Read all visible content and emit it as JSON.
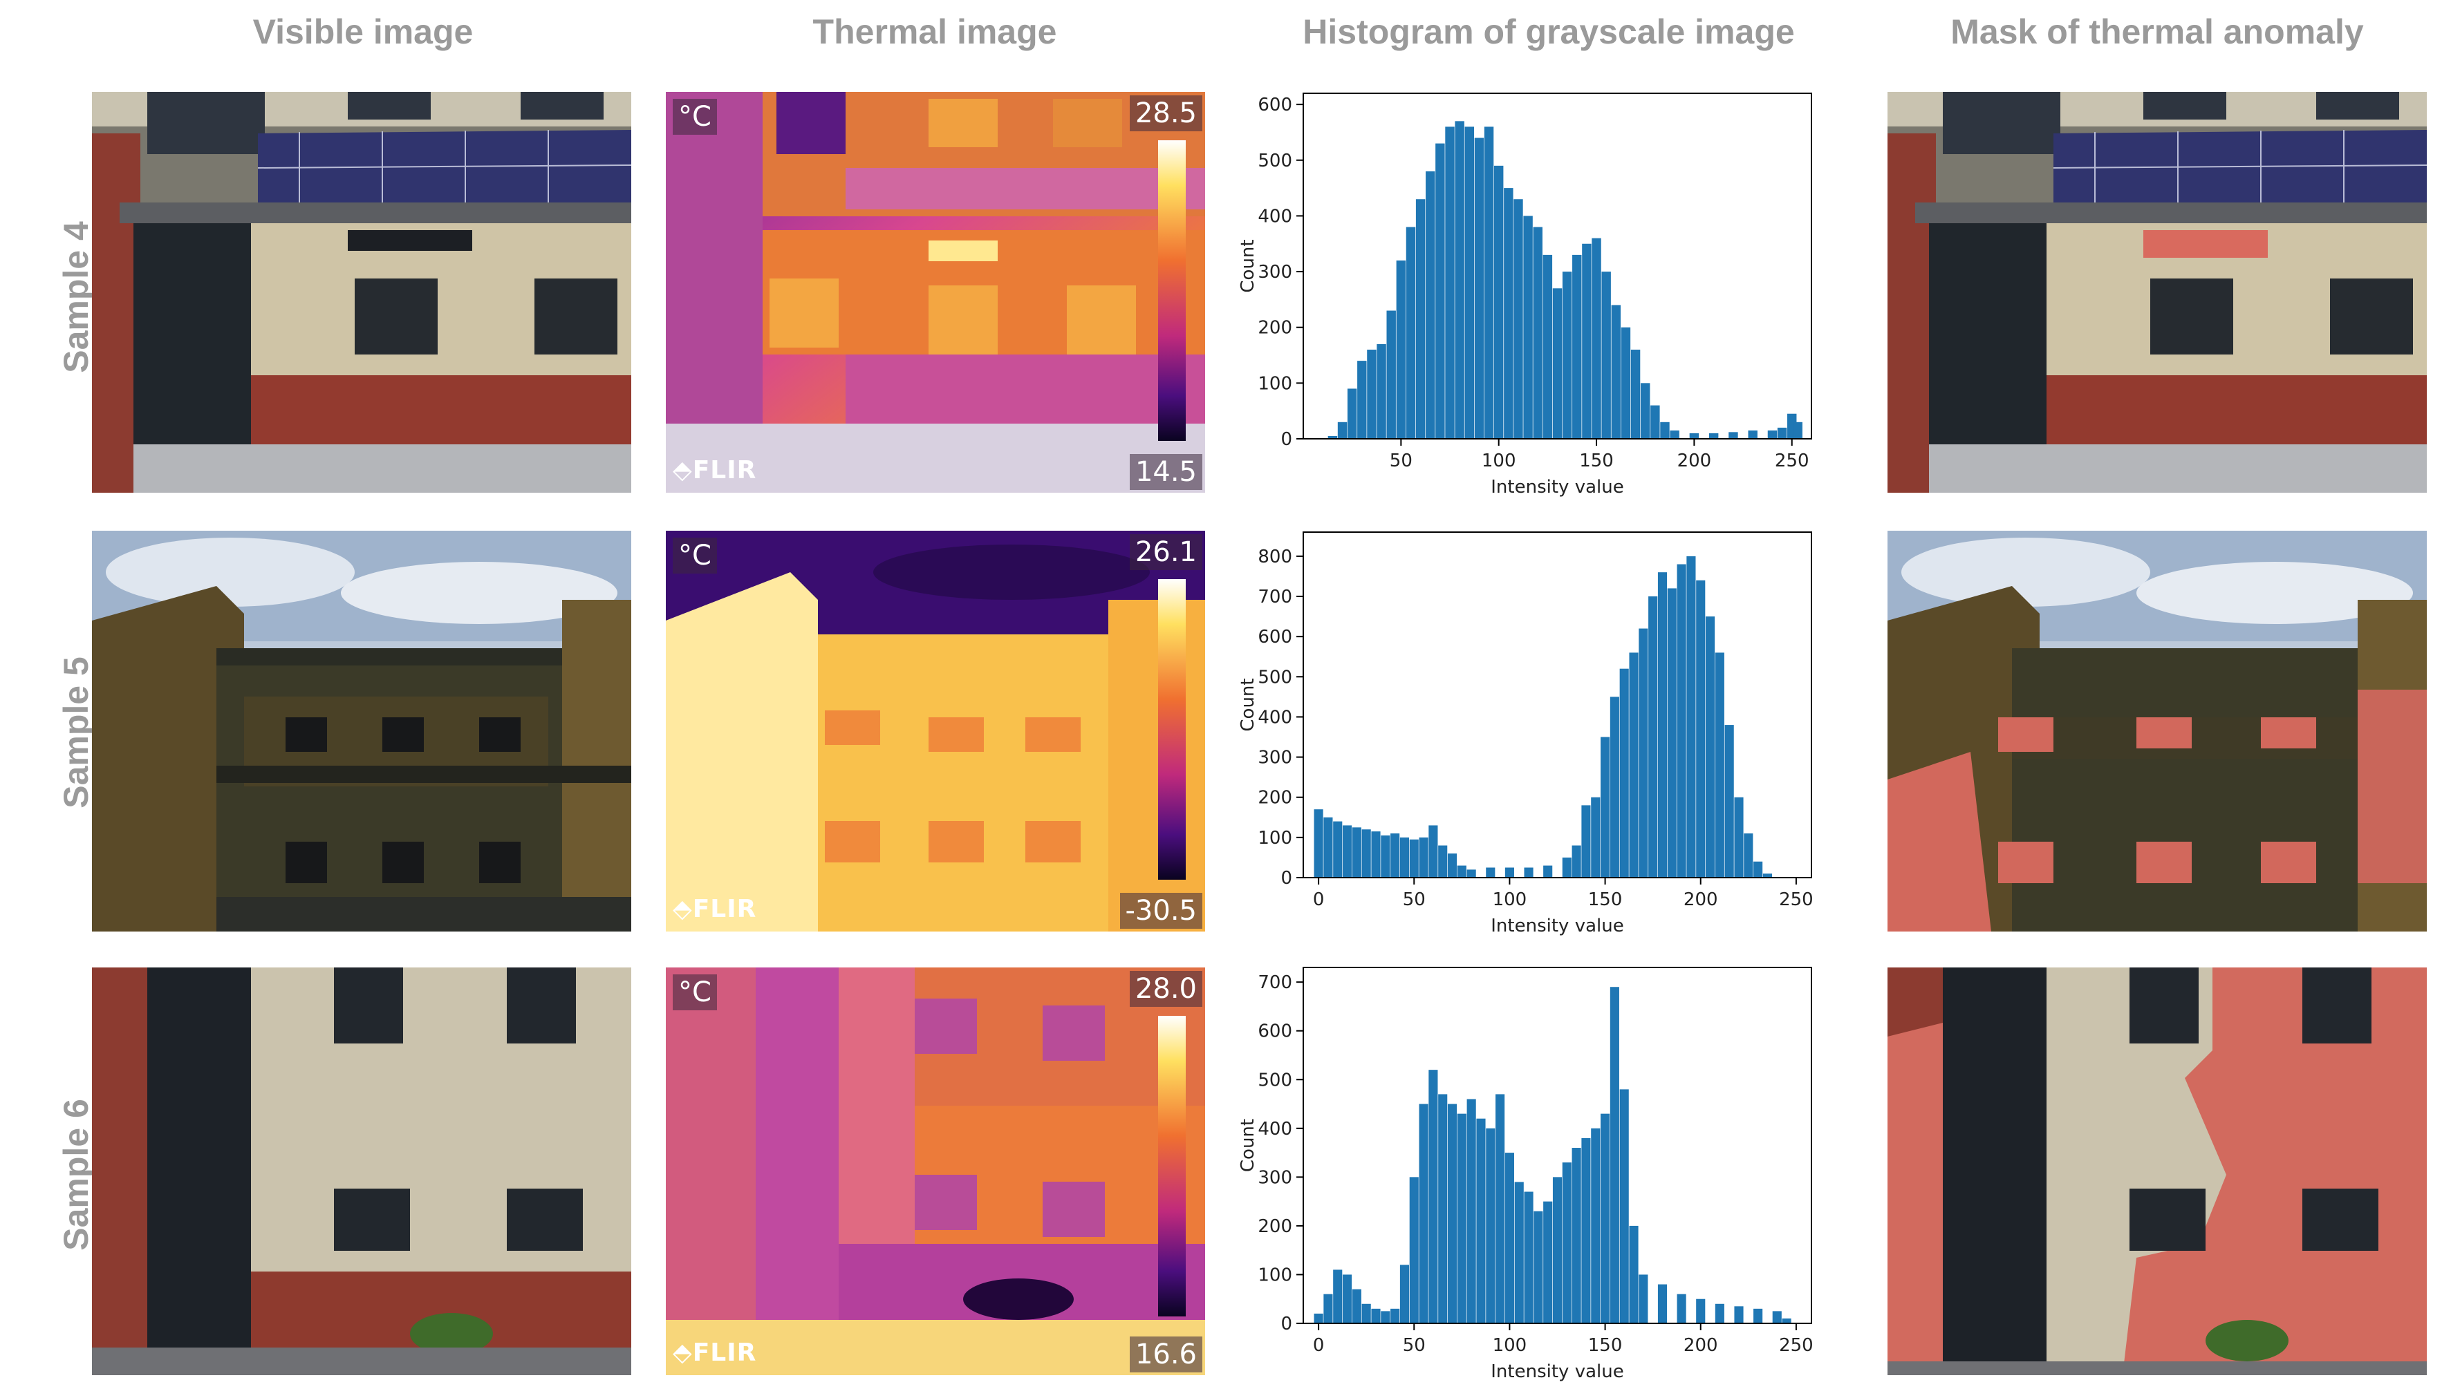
{
  "column_headers": [
    "Visible image",
    "Thermal image",
    "Histogram of grayscale image",
    "Mask of thermal anomaly"
  ],
  "rows": [
    {
      "label": "Sample 4",
      "thermal": {
        "unit": "°C",
        "max": "28.5",
        "min": "14.5",
        "logo": "FLIR"
      }
    },
    {
      "label": "Sample 5",
      "thermal": {
        "unit": "°C",
        "max": "26.1",
        "min": "-30.5",
        "logo": "FLIR"
      }
    },
    {
      "label": "Sample 6",
      "thermal": {
        "unit": "°C",
        "max": "28.0",
        "min": "16.6",
        "logo": "FLIR"
      }
    }
  ],
  "chart_data": [
    {
      "type": "bar",
      "xlabel": "Intensity value",
      "ylabel": "Count",
      "xlim": [
        0,
        260
      ],
      "ylim": [
        0,
        620
      ],
      "xticks": [
        50,
        100,
        150,
        200,
        250
      ],
      "yticks": [
        0,
        100,
        200,
        300,
        400,
        500,
        600
      ],
      "color": "#1f77b4",
      "x": [
        15,
        20,
        25,
        30,
        35,
        40,
        45,
        50,
        55,
        60,
        65,
        70,
        75,
        80,
        85,
        90,
        95,
        100,
        105,
        110,
        115,
        120,
        125,
        130,
        135,
        140,
        145,
        150,
        155,
        160,
        165,
        170,
        175,
        180,
        185,
        190,
        200,
        210,
        220,
        230,
        240,
        245,
        250,
        253
      ],
      "values": [
        5,
        30,
        90,
        140,
        160,
        170,
        230,
        320,
        380,
        430,
        480,
        530,
        560,
        570,
        560,
        540,
        560,
        490,
        450,
        430,
        400,
        380,
        330,
        270,
        300,
        330,
        350,
        360,
        300,
        240,
        200,
        160,
        100,
        60,
        30,
        15,
        10,
        10,
        12,
        15,
        15,
        20,
        45,
        30
      ]
    },
    {
      "type": "bar",
      "xlabel": "Intensity value",
      "ylabel": "Count",
      "xlim": [
        -8,
        258
      ],
      "ylim": [
        0,
        860
      ],
      "xticks": [
        0,
        50,
        100,
        150,
        200,
        250
      ],
      "yticks": [
        0,
        100,
        200,
        300,
        400,
        500,
        600,
        700,
        800
      ],
      "color": "#1f77b4",
      "x": [
        0,
        5,
        10,
        15,
        20,
        25,
        30,
        35,
        40,
        45,
        50,
        55,
        60,
        65,
        70,
        75,
        80,
        90,
        100,
        110,
        120,
        130,
        135,
        140,
        145,
        150,
        155,
        160,
        165,
        170,
        175,
        180,
        185,
        190,
        195,
        200,
        205,
        210,
        215,
        220,
        225,
        230,
        235
      ],
      "values": [
        170,
        150,
        140,
        130,
        125,
        120,
        115,
        105,
        110,
        100,
        95,
        100,
        130,
        80,
        60,
        30,
        20,
        25,
        25,
        25,
        30,
        50,
        80,
        180,
        200,
        350,
        450,
        520,
        560,
        620,
        700,
        760,
        720,
        780,
        800,
        740,
        650,
        560,
        380,
        200,
        110,
        40,
        10
      ]
    },
    {
      "type": "bar",
      "xlabel": "Intensity value",
      "ylabel": "Count",
      "xlim": [
        -8,
        258
      ],
      "ylim": [
        0,
        730
      ],
      "xticks": [
        0,
        50,
        100,
        150,
        200,
        250
      ],
      "yticks": [
        0,
        100,
        200,
        300,
        400,
        500,
        600,
        700
      ],
      "color": "#1f77b4",
      "x": [
        0,
        5,
        10,
        15,
        20,
        25,
        30,
        35,
        40,
        45,
        50,
        55,
        60,
        65,
        70,
        75,
        80,
        85,
        90,
        95,
        100,
        105,
        110,
        115,
        120,
        125,
        130,
        135,
        140,
        145,
        150,
        155,
        160,
        165,
        170,
        180,
        190,
        200,
        210,
        220,
        230,
        240,
        245
      ],
      "values": [
        20,
        60,
        110,
        100,
        70,
        40,
        30,
        25,
        30,
        120,
        300,
        450,
        520,
        470,
        450,
        430,
        460,
        420,
        400,
        470,
        350,
        290,
        270,
        230,
        250,
        300,
        330,
        360,
        380,
        400,
        430,
        690,
        480,
        200,
        100,
        80,
        60,
        50,
        40,
        35,
        30,
        25,
        10
      ]
    }
  ]
}
